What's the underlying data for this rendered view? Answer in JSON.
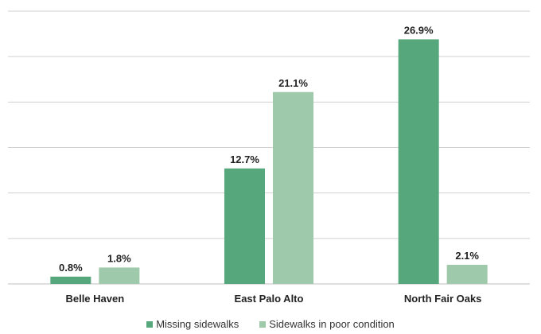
{
  "chart_data": {
    "type": "bar",
    "title": "",
    "xlabel": "",
    "ylabel": "",
    "categories": [
      "Belle Haven",
      "East Palo Alto",
      "North Fair Oaks"
    ],
    "series": [
      {
        "name": "Missing sidewalks",
        "values": [
          0.8,
          12.7,
          26.9
        ],
        "labels": [
          "0.8%",
          "12.7%",
          "26.9%"
        ],
        "color": "#57a77c"
      },
      {
        "name": "Sidewalks in poor condition",
        "values": [
          1.8,
          21.1,
          2.1
        ],
        "labels": [
          "1.8%",
          "21.1%",
          "2.1%"
        ],
        "color": "#9ecaab"
      }
    ],
    "ylim": [
      0,
      30
    ],
    "gridlines": true,
    "legend_position": "bottom"
  }
}
